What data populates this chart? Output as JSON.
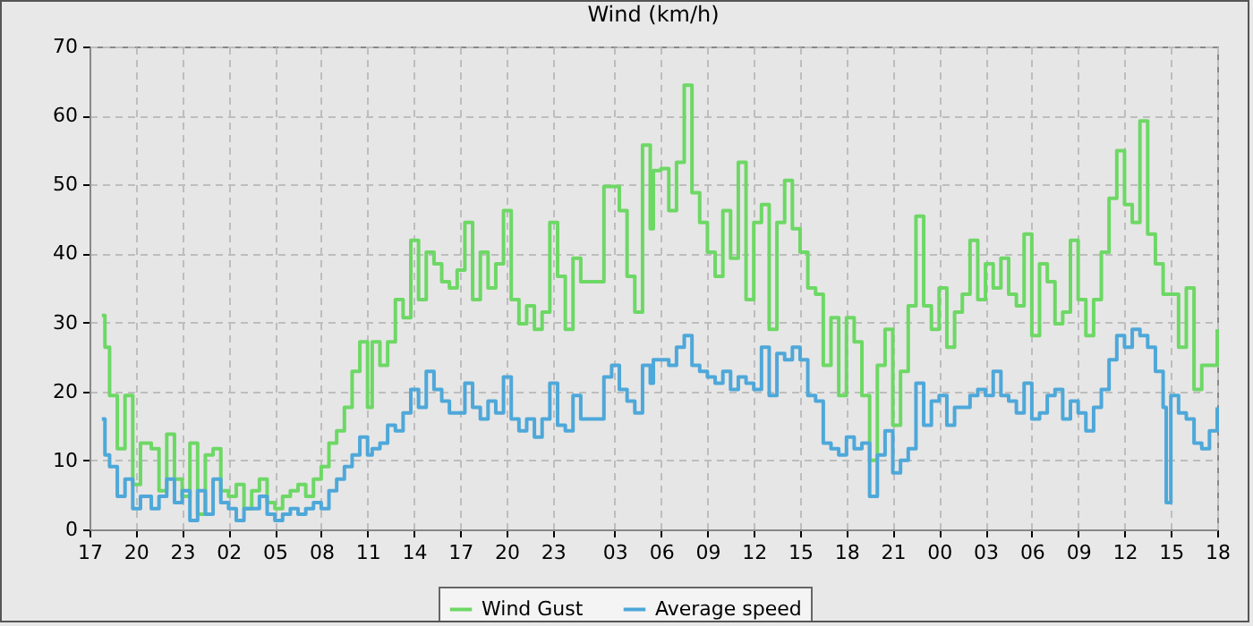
{
  "chart_data": {
    "type": "step",
    "title": "Wind (km/h)",
    "xlim": [
      "--03-26T17:00",
      "--03-29T18:00"
    ],
    "ylim": [
      0,
      70
    ],
    "xticks": [
      {
        "value": "--03-26T17:00",
        "label": "17"
      },
      {
        "value": "--03-26T20:00",
        "label": "20"
      },
      {
        "value": "--03-26T23:00",
        "label": "23"
      },
      {
        "value": "--03-27T02:00",
        "label": "02"
      },
      {
        "value": "--03-27T05:00",
        "label": "05"
      },
      {
        "value": "--03-27T08:00",
        "label": "08"
      },
      {
        "value": "--03-27T11:00",
        "label": "11"
      },
      {
        "value": "--03-27T14:00",
        "label": "14"
      },
      {
        "value": "--03-27T17:00",
        "label": "17"
      },
      {
        "value": "--03-27T20:00",
        "label": "20"
      },
      {
        "value": "--03-27T23:00",
        "label": "23"
      },
      {
        "value": "--03-28T03:00",
        "label": "03"
      },
      {
        "value": "--03-28T06:00",
        "label": "06"
      },
      {
        "value": "--03-28T09:00",
        "label": "09"
      },
      {
        "value": "--03-28T12:00",
        "label": "12"
      },
      {
        "value": "--03-28T15:00",
        "label": "15"
      },
      {
        "value": "--03-28T18:00",
        "label": "18"
      },
      {
        "value": "--03-28T21:00",
        "label": "21"
      },
      {
        "value": "--03-29T00:00",
        "label": "00"
      },
      {
        "value": "--03-29T03:00",
        "label": "03"
      },
      {
        "value": "--03-29T06:00",
        "label": "06"
      },
      {
        "value": "--03-29T09:00",
        "label": "09"
      },
      {
        "value": "--03-29T12:00",
        "label": "12"
      },
      {
        "value": "--03-29T15:00",
        "label": "15"
      },
      {
        "value": "--03-29T18:00",
        "label": "18"
      }
    ],
    "yticks": [
      0,
      10,
      20,
      30,
      40,
      50,
      60,
      70
    ],
    "grid": true,
    "legend": "bottom",
    "marker": "none",
    "line_style": "solid",
    "x": [
      "--03-26T17:48",
      "--03-26T18:00",
      "--03-26T18:18",
      "--03-26T18:48",
      "--03-26T19:18",
      "--03-26T19:48",
      "--03-26T20:18",
      "--03-26T21:00",
      "--03-26T21:30",
      "--03-26T22:00",
      "--03-26T22:30",
      "--03-26T23:00",
      "--03-26T23:30",
      "--03-27T00:00",
      "--03-27T00:30",
      "--03-27T01:00",
      "--03-27T01:30",
      "--03-27T02:00",
      "--03-27T02:30",
      "--03-27T03:00",
      "--03-27T03:30",
      "--03-27T04:00",
      "--03-27T04:30",
      "--03-27T05:00",
      "--03-27T05:30",
      "--03-27T06:00",
      "--03-27T06:30",
      "--03-27T07:00",
      "--03-27T07:30",
      "--03-27T08:00",
      "--03-27T08:30",
      "--03-27T09:00",
      "--03-27T09:30",
      "--03-27T10:00",
      "--03-27T10:30",
      "--03-27T11:00",
      "--03-27T11:18",
      "--03-27T11:48",
      "--03-27T12:18",
      "--03-27T12:48",
      "--03-27T13:18",
      "--03-27T13:48",
      "--03-27T14:18",
      "--03-27T14:48",
      "--03-27T15:18",
      "--03-27T15:48",
      "--03-27T16:18",
      "--03-27T16:48",
      "--03-27T17:18",
      "--03-27T17:48",
      "--03-27T18:18",
      "--03-27T18:48",
      "--03-27T19:18",
      "--03-27T19:48",
      "--03-27T20:18",
      "--03-27T20:48",
      "--03-27T21:18",
      "--03-27T21:48",
      "--03-27T22:18",
      "--03-27T22:48",
      "--03-27T23:18",
      "--03-27T23:48",
      "--03-28T00:18",
      "--03-28T00:48",
      "--03-28T02:18",
      "--03-28T02:48",
      "--03-28T03:18",
      "--03-28T03:48",
      "--03-28T04:18",
      "--03-28T04:48",
      "--03-28T05:18",
      "--03-28T05:30",
      "--03-28T06:00",
      "--03-28T06:30",
      "--03-28T07:00",
      "--03-28T07:30",
      "--03-28T08:00",
      "--03-28T08:30",
      "--03-28T09:00",
      "--03-28T09:30",
      "--03-28T10:00",
      "--03-28T10:30",
      "--03-28T11:00",
      "--03-28T11:30",
      "--03-28T12:00",
      "--03-28T12:30",
      "--03-28T13:00",
      "--03-28T13:30",
      "--03-28T14:00",
      "--03-28T14:30",
      "--03-28T15:00",
      "--03-28T15:30",
      "--03-28T16:00",
      "--03-28T16:30",
      "--03-28T17:00",
      "--03-28T17:30",
      "--03-28T18:00",
      "--03-28T18:30",
      "--03-28T19:00",
      "--03-28T19:30",
      "--03-28T20:00",
      "--03-28T20:30",
      "--03-28T21:00",
      "--03-28T21:30",
      "--03-28T22:00",
      "--03-28T22:30",
      "--03-28T23:00",
      "--03-28T23:30",
      "--03-29T00:00",
      "--03-29T00:30",
      "--03-29T01:00",
      "--03-29T01:30",
      "--03-29T02:00",
      "--03-29T02:30",
      "--03-29T03:00",
      "--03-29T03:30",
      "--03-29T04:00",
      "--03-29T04:30",
      "--03-29T05:00",
      "--03-29T05:30",
      "--03-29T06:00",
      "--03-29T06:30",
      "--03-29T07:00",
      "--03-29T07:30",
      "--03-29T08:00",
      "--03-29T08:30",
      "--03-29T09:00",
      "--03-29T09:30",
      "--03-29T10:00",
      "--03-29T10:30",
      "--03-29T11:00",
      "--03-29T11:30",
      "--03-29T12:00",
      "--03-29T12:30",
      "--03-29T13:00",
      "--03-29T13:30",
      "--03-29T14:00",
      "--03-29T14:30",
      "--03-29T14:42",
      "--03-29T15:00",
      "--03-29T15:30",
      "--03-29T16:00",
      "--03-29T16:30",
      "--03-29T17:00",
      "--03-29T17:30",
      "--03-29T18:00"
    ],
    "series": [
      {
        "name": "Wind Gust",
        "color": "#6dd865",
        "values": [
          31,
          26.4,
          19.4,
          11.7,
          19.4,
          6.5,
          12.5,
          11.7,
          5.6,
          13.8,
          7.3,
          4.8,
          12.5,
          2.2,
          10.8,
          11.7,
          5.6,
          4.8,
          6.5,
          3,
          5.6,
          7.3,
          3.9,
          3,
          4.8,
          5.6,
          6.5,
          4.8,
          7.3,
          9.1,
          12.5,
          14.3,
          17.7,
          22.9,
          27.2,
          17.7,
          27.2,
          23.8,
          27.2,
          33.3,
          30.7,
          41.9,
          33.3,
          40.2,
          38.5,
          35.9,
          35,
          37.6,
          44.5,
          33.3,
          40.2,
          35,
          38.5,
          46.2,
          33.3,
          29.8,
          32.4,
          29,
          31.5,
          44.5,
          36.7,
          29,
          39.3,
          35.9,
          49.7,
          49.7,
          46.2,
          36.7,
          31.5,
          55.7,
          43.6,
          52,
          52.3,
          46.2,
          53.2,
          64.4,
          48.8,
          44.5,
          40.2,
          36.7,
          46.2,
          39.3,
          53.2,
          33.3,
          44.5,
          47.1,
          29,
          44.5,
          50.6,
          43.6,
          40.2,
          35,
          34.1,
          23.8,
          30.7,
          19.4,
          30.7,
          27.2,
          19.4,
          10,
          23.8,
          29,
          15.1,
          22.9,
          32.4,
          45.4,
          32.4,
          29,
          35,
          26.4,
          31.5,
          34.1,
          41.9,
          33.3,
          38.5,
          35,
          39.3,
          34.1,
          32.4,
          42.8,
          28.1,
          38.5,
          35.9,
          29.8,
          31.5,
          41.9,
          33.3,
          28.1,
          33.3,
          40.2,
          48,
          54.9,
          47.1,
          44.5,
          59.2,
          42.8,
          38.5,
          34.1,
          34.1,
          34.1,
          26.4,
          35,
          20.3,
          23.8,
          23.8,
          29
        ]
      },
      {
        "name": "Average speed",
        "color": "#4ea8d9",
        "values": [
          16,
          10.8,
          9.1,
          4.8,
          7.3,
          3,
          4.8,
          3,
          4.8,
          7.3,
          3.9,
          5.6,
          1.3,
          5.6,
          2.2,
          7.3,
          3.9,
          3,
          1.3,
          3,
          3,
          4.8,
          2.2,
          1.3,
          2.2,
          3,
          2.2,
          3,
          3.9,
          3,
          5.6,
          7.3,
          9.1,
          10.8,
          13.4,
          10.8,
          11.7,
          12.5,
          15.1,
          14.3,
          16.9,
          20.3,
          17.7,
          22.9,
          20.3,
          18.6,
          16.9,
          16.9,
          21.2,
          17.7,
          16,
          18.6,
          16.9,
          22.1,
          16,
          14.3,
          16,
          13.4,
          16,
          21.2,
          15.1,
          14.3,
          19.4,
          16,
          22.1,
          23.8,
          20.3,
          18.6,
          16.9,
          23.8,
          21.2,
          24.6,
          24.6,
          23.8,
          26.4,
          28.1,
          23.8,
          22.9,
          22.1,
          21.2,
          22.9,
          20.3,
          22.1,
          21.2,
          20.3,
          26.4,
          19.4,
          25.5,
          24.6,
          26.4,
          24.6,
          19.4,
          18.6,
          12.5,
          11.7,
          10.8,
          13.4,
          11.7,
          12.5,
          4.8,
          10.8,
          14.3,
          8.2,
          10,
          11.7,
          21.2,
          15.1,
          18.6,
          19.4,
          15.1,
          17.7,
          17.7,
          19.4,
          20.3,
          19.4,
          22.9,
          19.4,
          18.6,
          16.9,
          21.2,
          16,
          16.9,
          19.4,
          20.3,
          16,
          18.6,
          16.9,
          14.3,
          17.7,
          20.3,
          24.6,
          28.1,
          26.4,
          29,
          28.1,
          26.4,
          22.9,
          17.7,
          3.9,
          19.4,
          16.9,
          16,
          12.5,
          11.7,
          14.3,
          17.7
        ]
      }
    ]
  }
}
